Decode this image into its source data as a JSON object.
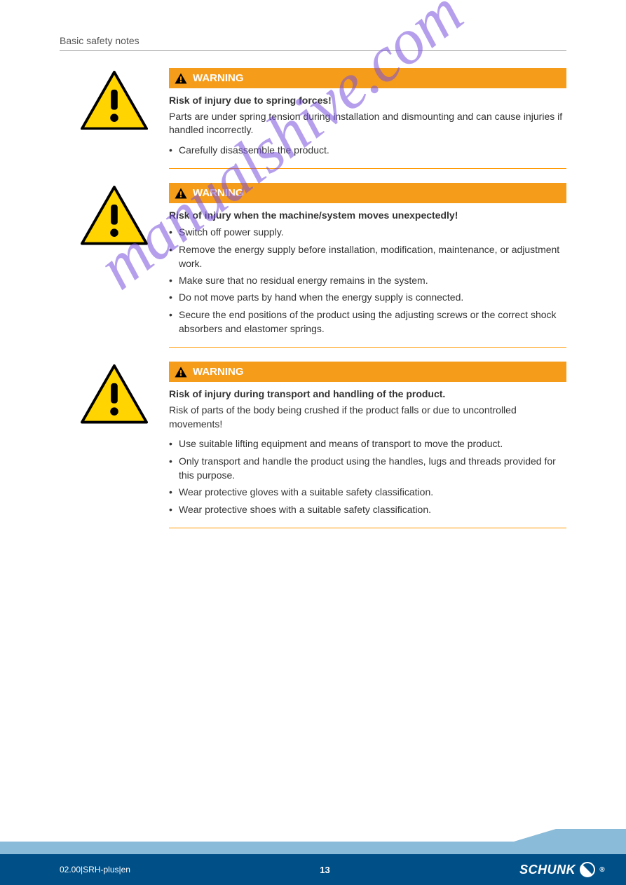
{
  "header": {
    "left": "Basic safety notes",
    "right": ""
  },
  "colors": {
    "warning_bg": "#f59c1a",
    "warning_border": "#ff9900",
    "triangle_fill": "#ffd400",
    "triangle_stroke": "#000000",
    "footer_dark": "#004f87",
    "footer_light": "#8abbd8",
    "watermark": "rgba(120,80,220,0.55)"
  },
  "watermark": "manualshive.com",
  "notices": [
    {
      "label": "WARNING",
      "main": "Risk of injury due to spring forces!",
      "sub": "Parts are under spring tension during installation and dismounting and can cause injuries if handled incorrectly.",
      "bullets": [
        "Carefully disassemble the product."
      ]
    },
    {
      "label": "WARNING",
      "main": "Risk of injury when the machine/system moves unexpectedly!",
      "sub": "",
      "bullets": [
        "Switch off power supply.",
        "Remove the energy supply before installation, modification, maintenance, or adjustment work.",
        "Make sure that no residual energy remains in the system.",
        "Do not move parts by hand when the energy supply is connected.",
        "Secure the end positions of the product using the adjusting screws or the correct shock absorbers and elastomer springs."
      ]
    },
    {
      "label": "WARNING",
      "main": "Risk of injury during transport and handling of the product.",
      "sub": "Risk of parts of the body being crushed if the product falls or due to uncontrolled movements!",
      "bullets": [
        "Use suitable lifting equipment and means of transport to move the product.",
        "Only transport and handle the product using the handles, lugs and threads provided for this purpose.",
        "Wear protective gloves with a suitable safety classification.",
        "Wear protective shoes with a suitable safety classification."
      ]
    }
  ],
  "footer": {
    "text": "02.00|SRH-plus|en",
    "page": "13",
    "brand": "SCHUNK"
  }
}
